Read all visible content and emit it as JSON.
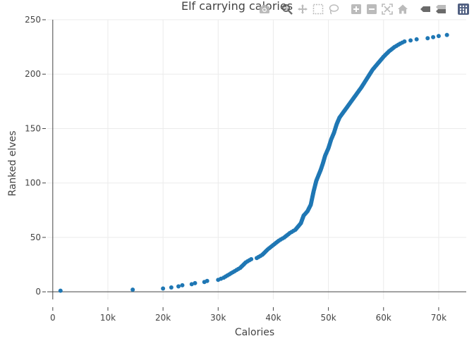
{
  "title": "Elf carrying calories",
  "colors": {
    "marker": "#1f77b4",
    "grid": "#ebebeb",
    "axis_line": "#444444",
    "text": "#444444",
    "modebar_icon": "#b4b4b4",
    "modebar_active": "#5a5a5a",
    "plotly_logo_bg": "#3f4f75"
  },
  "modebar": {
    "buttons": [
      {
        "name": "camera-icon",
        "action": "download-plot"
      },
      {
        "name": "zoom-icon",
        "action": "zoom"
      },
      {
        "name": "pan-icon",
        "action": "pan"
      },
      {
        "name": "box-select-icon",
        "action": "box-select"
      },
      {
        "name": "lasso-select-icon",
        "action": "lasso-select"
      },
      {
        "name": "zoom-in-icon",
        "action": "zoom-in"
      },
      {
        "name": "zoom-out-icon",
        "action": "zoom-out"
      },
      {
        "name": "autoscale-icon",
        "action": "autoscale"
      },
      {
        "name": "reset-axes-icon",
        "action": "reset-axes"
      },
      {
        "name": "spike-lines-icon",
        "action": "toggle-spike-lines"
      },
      {
        "name": "hover-compare-icon",
        "action": "compare-hover"
      },
      {
        "name": "plotly-logo-icon",
        "action": "plotly-logo"
      }
    ]
  },
  "chart_data": {
    "type": "scatter",
    "title": "Elf carrying calories",
    "xlabel": "Calories",
    "ylabel": "Ranked elves",
    "xlim": [
      -1000,
      75000
    ],
    "ylim": [
      -7,
      250
    ],
    "xticks": [
      0,
      10000,
      20000,
      30000,
      40000,
      50000,
      60000,
      70000
    ],
    "xtick_labels": [
      "0",
      "10k",
      "20k",
      "30k",
      "40k",
      "50k",
      "60k",
      "70k"
    ],
    "yticks": [
      0,
      50,
      100,
      150,
      200,
      250
    ],
    "ytick_labels": [
      "0",
      "50",
      "100",
      "150",
      "200",
      "250"
    ],
    "grid": true,
    "legend": "none",
    "curve_points": [
      [
        1400,
        1
      ],
      [
        14500,
        2
      ],
      [
        20000,
        3
      ],
      [
        21500,
        4
      ],
      [
        22800,
        5
      ],
      [
        23500,
        6
      ],
      [
        25200,
        7
      ],
      [
        25800,
        8
      ],
      [
        27500,
        9
      ],
      [
        28000,
        10
      ],
      [
        30000,
        11
      ],
      [
        31000,
        13
      ],
      [
        32000,
        16
      ],
      [
        33000,
        19
      ],
      [
        34000,
        22
      ],
      [
        35000,
        27
      ],
      [
        36000,
        30
      ],
      [
        37000,
        31
      ],
      [
        38000,
        34
      ],
      [
        39000,
        39
      ],
      [
        40000,
        43
      ],
      [
        41000,
        47
      ],
      [
        42000,
        50
      ],
      [
        43000,
        54
      ],
      [
        44000,
        57
      ],
      [
        45000,
        63
      ],
      [
        45500,
        70
      ],
      [
        46200,
        74
      ],
      [
        46800,
        80
      ],
      [
        47300,
        92
      ],
      [
        47800,
        102
      ],
      [
        48200,
        107
      ],
      [
        48600,
        112
      ],
      [
        49000,
        118
      ],
      [
        49400,
        125
      ],
      [
        50000,
        132
      ],
      [
        50500,
        140
      ],
      [
        51000,
        146
      ],
      [
        51500,
        154
      ],
      [
        52000,
        160
      ],
      [
        53000,
        167
      ],
      [
        54000,
        174
      ],
      [
        55000,
        181
      ],
      [
        56000,
        188
      ],
      [
        57000,
        196
      ],
      [
        58000,
        204
      ],
      [
        59000,
        210
      ],
      [
        60000,
        216
      ],
      [
        61000,
        221
      ],
      [
        62000,
        225
      ],
      [
        63000,
        228
      ],
      [
        63800,
        230
      ],
      [
        66000,
        232
      ],
      [
        68000,
        233
      ],
      [
        69000,
        234
      ],
      [
        70000,
        235
      ],
      [
        71500,
        236
      ]
    ]
  }
}
